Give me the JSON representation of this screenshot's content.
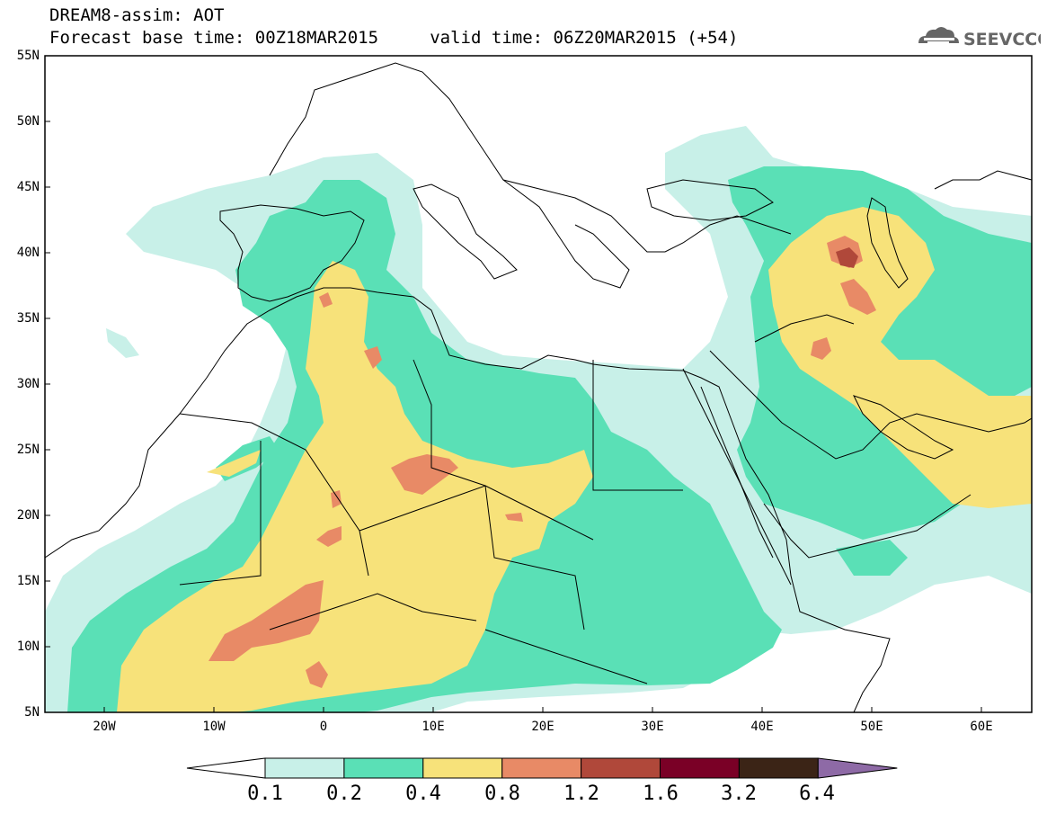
{
  "header": {
    "line1": "DREAM8-assim: AOT",
    "line2": "Forecast base time: 00Z18MAR2015     valid time: 06Z20MAR2015 (+54)"
  },
  "logo": {
    "text": "SEEVCCC",
    "icon": "cloud-icon"
  },
  "map": {
    "lat_labels": [
      "55N",
      "50N",
      "45N",
      "40N",
      "35N",
      "30N",
      "25N",
      "20N",
      "15N",
      "10N",
      "5N"
    ],
    "lon_labels": [
      "20W",
      "10W",
      "0",
      "10E",
      "20E",
      "30E",
      "40E",
      "50E",
      "60E"
    ],
    "extent": {
      "lon": [
        -25,
        65
      ],
      "lat": [
        5,
        55
      ]
    }
  },
  "colorbar": {
    "labels": [
      "0.1",
      "0.2",
      "0.4",
      "0.8",
      "1.2",
      "1.6",
      "3.2",
      "6.4"
    ],
    "colors": [
      "#ffffff",
      "#c8f0e8",
      "#5ae0b6",
      "#f7e27a",
      "#e88a66",
      "#b0483a",
      "#7a0026",
      "#3b2416",
      "#8e6aa6"
    ]
  }
}
